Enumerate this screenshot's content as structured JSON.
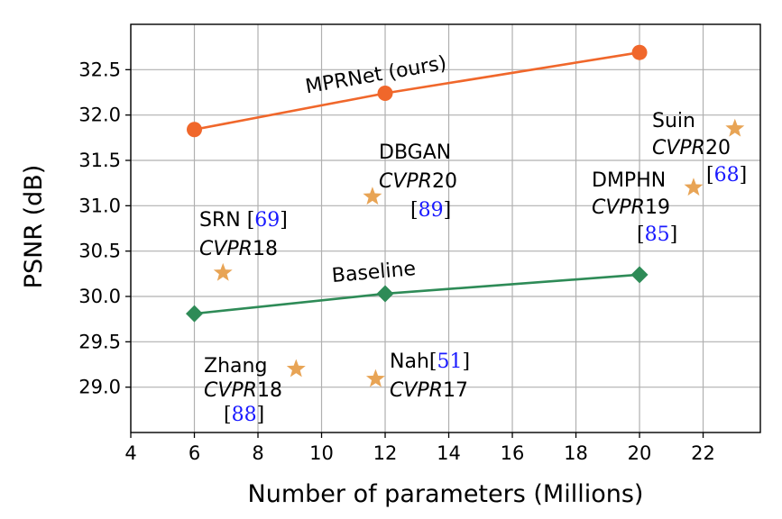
{
  "chart_data": {
    "type": "scatter",
    "title": "",
    "xlabel": "Number of parameters (Millions)",
    "ylabel": "PSNR (dB)",
    "xlim": [
      4,
      23.8
    ],
    "ylim": [
      28.5,
      33.0
    ],
    "xticks": [
      4,
      6,
      8,
      10,
      12,
      14,
      16,
      18,
      20,
      22
    ],
    "yticks": [
      29.0,
      29.5,
      30.0,
      30.5,
      31.0,
      31.5,
      32.0,
      32.5
    ],
    "xtick_labels": [
      "4",
      "6",
      "8",
      "10",
      "12",
      "14",
      "16",
      "18",
      "20",
      "22"
    ],
    "ytick_labels": [
      "29.0",
      "29.5",
      "30.0",
      "30.5",
      "31.0",
      "31.5",
      "32.0",
      "32.5"
    ],
    "grid": true,
    "series": [
      {
        "name": "MPRNet (ours)",
        "marker": "circle",
        "color": "#f0672b",
        "x": [
          6,
          12,
          20
        ],
        "y": [
          31.84,
          32.24,
          32.69
        ]
      },
      {
        "name": "Baseline",
        "marker": "diamond",
        "color": "#2e8b57",
        "x": [
          6,
          12,
          20
        ],
        "y": [
          29.81,
          30.03,
          30.24
        ]
      }
    ],
    "others": {
      "marker": "star",
      "color": "#e8a455",
      "points": [
        {
          "id": "srn",
          "x": 6.9,
          "y": 30.26,
          "lines": [
            {
              "a": "SRN ",
              "cite": "69"
            },
            {
              "venue": "CVPR",
              "year": "18"
            }
          ]
        },
        {
          "id": "dbgan",
          "x": 11.6,
          "y": 31.1,
          "lines": [
            {
              "a": "DBGAN"
            },
            {
              "venue": "CVPR",
              "year": "20"
            },
            {
              "cite": "89"
            }
          ]
        },
        {
          "id": "dmphn",
          "x": 21.7,
          "y": 31.2,
          "lines": [
            {
              "a": "DMPHN"
            },
            {
              "venue": "CVPR",
              "year": "19"
            },
            {
              "cite": "85"
            }
          ]
        },
        {
          "id": "suin",
          "x": 23.0,
          "y": 31.85,
          "lines": [
            {
              "a": "Suin"
            },
            {
              "venue": "CVPR",
              "year": "20"
            },
            {
              "cite": "68"
            }
          ]
        },
        {
          "id": "zhang",
          "x": 9.2,
          "y": 29.2,
          "lines": [
            {
              "a": "Zhang"
            },
            {
              "venue": "CVPR",
              "year": "18"
            },
            {
              "cite": "88"
            }
          ]
        },
        {
          "id": "nah",
          "x": 11.7,
          "y": 29.09,
          "lines": [
            {
              "a": "Nah",
              "cite": "51"
            },
            {
              "venue": "CVPR",
              "year": "17"
            }
          ]
        }
      ]
    }
  }
}
